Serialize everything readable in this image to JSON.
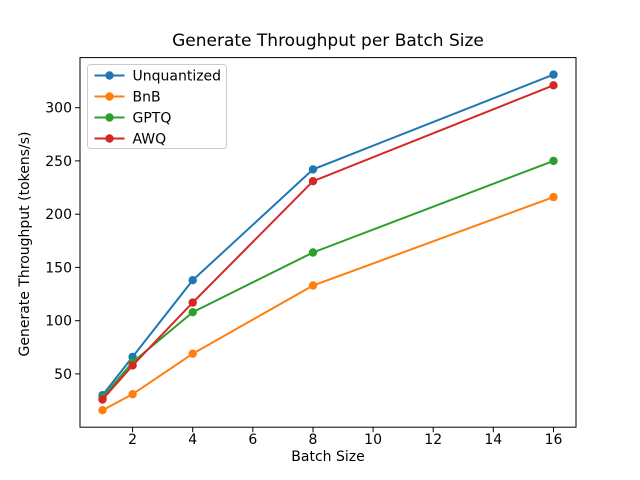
{
  "figure": {
    "background": "#ffffff",
    "axes_background": "#ffffff",
    "spine_color": "#000000",
    "text_color": "#000000",
    "legend_border_color": "#cccccc"
  },
  "chart_data": {
    "type": "line",
    "title": "Generate Throughput per Batch Size",
    "xlabel": "Batch Size",
    "ylabel": "Generate Throughput (tokens/s)",
    "x": [
      1,
      2,
      4,
      8,
      16
    ],
    "series": [
      {
        "name": "Unquantized",
        "color": "#1f77b4",
        "marker": "o",
        "values": [
          30,
          66,
          138,
          242,
          331
        ]
      },
      {
        "name": "BnB",
        "color": "#ff7f0e",
        "marker": "o",
        "values": [
          16,
          31,
          69,
          133,
          216
        ]
      },
      {
        "name": "GPTQ",
        "color": "#2ca02c",
        "marker": "o",
        "values": [
          28,
          61,
          108,
          164,
          250
        ]
      },
      {
        "name": "AWQ",
        "color": "#d62728",
        "marker": "o",
        "values": [
          26,
          58,
          117,
          231,
          321
        ]
      }
    ],
    "xticks": [
      2,
      4,
      6,
      8,
      10,
      12,
      14,
      16
    ],
    "yticks": [
      50,
      100,
      150,
      200,
      250,
      300
    ],
    "xlim": [
      0.25,
      16.75
    ],
    "ylim": [
      0,
      347
    ],
    "grid": false,
    "legend": {
      "position": "upper left",
      "entries": [
        "Unquantized",
        "BnB",
        "GPTQ",
        "AWQ"
      ]
    }
  }
}
